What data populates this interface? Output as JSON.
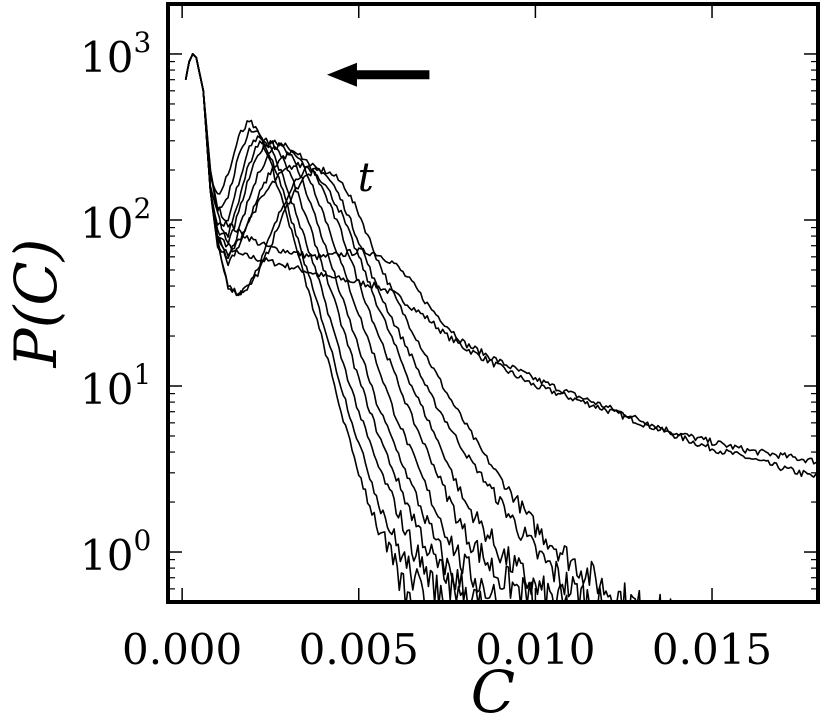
{
  "chart_data": {
    "type": "line",
    "title": "",
    "xlabel": "C",
    "ylabel": "P(C)",
    "xlim": [
      -0.0004,
      0.018
    ],
    "ylim": [
      0.5,
      2000
    ],
    "yscale": "log",
    "grid": false,
    "legend": "none",
    "x_ticks": [
      {
        "value": 0.0,
        "label": "0.000"
      },
      {
        "value": 0.005,
        "label": "0.005"
      },
      {
        "value": 0.01,
        "label": "0.010"
      },
      {
        "value": 0.015,
        "label": "0.015"
      }
    ],
    "y_ticks": [
      {
        "value": 1,
        "base": "10",
        "exp": "0"
      },
      {
        "value": 10,
        "base": "10",
        "exp": "1"
      },
      {
        "value": 100,
        "base": "10",
        "exp": "2"
      },
      {
        "value": 1000,
        "base": "10",
        "exp": "3"
      }
    ],
    "annotations": [
      {
        "text": "t",
        "x": 0.0052,
        "y": 150
      },
      {
        "type": "arrow",
        "from": [
          0.007,
          750
        ],
        "to": [
          0.0041,
          750
        ]
      }
    ],
    "series": [
      {
        "x": [
          0.0001,
          0.0002,
          0.0003,
          0.0004,
          0.0006,
          0.0008,
          0.001,
          0.0013,
          0.0016,
          0.0019,
          0.0022,
          0.0025,
          0.0028,
          0.0031,
          0.0034,
          0.0037,
          0.004,
          0.0045,
          0.005,
          0.0055,
          0.006,
          0.0065,
          0.007,
          0.0075,
          0.008,
          0.009,
          0.01,
          0.011,
          0.012,
          0.013,
          0.014,
          0.015,
          0.016,
          0.017,
          0.018
        ],
        "y": [
          700,
          900,
          1000,
          950,
          600,
          200,
          110,
          70,
          62,
          60,
          58,
          56,
          54,
          52,
          50,
          48,
          46,
          44,
          42,
          40,
          36,
          30,
          25,
          20,
          17,
          13,
          10,
          8.5,
          7.2,
          6,
          5,
          4.2,
          3.7,
          3.2,
          2.8
        ]
      },
      {
        "x": [
          0.0001,
          0.0002,
          0.0003,
          0.0004,
          0.0006,
          0.0008,
          0.001,
          0.0013,
          0.0016,
          0.0019,
          0.0022,
          0.0025,
          0.0028,
          0.0031,
          0.0034,
          0.0037,
          0.004,
          0.0045,
          0.005,
          0.0055,
          0.006,
          0.0065,
          0.007,
          0.0075,
          0.008,
          0.009,
          0.01,
          0.011,
          0.012,
          0.013,
          0.014,
          0.015,
          0.016,
          0.017,
          0.018
        ],
        "y": [
          700,
          900,
          1000,
          950,
          600,
          200,
          120,
          95,
          85,
          78,
          72,
          68,
          66,
          64,
          62,
          60,
          60,
          62,
          65,
          63,
          55,
          42,
          30,
          23,
          18,
          14,
          11,
          9,
          7.5,
          6.2,
          5.2,
          4.6,
          4.1,
          3.8,
          3.5
        ]
      },
      {
        "x": [
          0.0001,
          0.0002,
          0.0003,
          0.0004,
          0.0006,
          0.0008,
          0.001,
          0.0013,
          0.0016,
          0.0019,
          0.0022,
          0.0025,
          0.0028,
          0.0031,
          0.0034,
          0.0037,
          0.004,
          0.0043,
          0.0046,
          0.005,
          0.0055,
          0.006,
          0.0065,
          0.007,
          0.0075,
          0.008,
          0.0085,
          0.009,
          0.0095,
          0.01,
          0.011,
          0.012,
          0.013,
          0.014
        ],
        "y": [
          700,
          900,
          1000,
          950,
          600,
          150,
          70,
          40,
          36,
          40,
          50,
          70,
          100,
          140,
          175,
          195,
          200,
          185,
          160,
          110,
          60,
          35,
          22,
          14,
          9,
          6,
          4,
          2.8,
          2,
          1.4,
          0.9,
          0.6,
          0.45,
          0.4
        ]
      },
      {
        "x": [
          0.0001,
          0.0002,
          0.0003,
          0.0004,
          0.0006,
          0.0008,
          0.001,
          0.0013,
          0.0016,
          0.0019,
          0.0022,
          0.0025,
          0.0028,
          0.0031,
          0.0034,
          0.0037,
          0.004,
          0.0043,
          0.0046,
          0.005,
          0.0055,
          0.006,
          0.0065,
          0.007,
          0.0075,
          0.008,
          0.009,
          0.01,
          0.011,
          0.012
        ],
        "y": [
          700,
          900,
          1000,
          950,
          600,
          150,
          70,
          40,
          36,
          42,
          55,
          80,
          115,
          160,
          195,
          210,
          195,
          160,
          120,
          75,
          40,
          24,
          15,
          9,
          6,
          4,
          2,
          1,
          0.6,
          0.45
        ]
      },
      {
        "x": [
          0.0001,
          0.0002,
          0.0003,
          0.0004,
          0.0006,
          0.0008,
          0.001,
          0.0013,
          0.0016,
          0.0019,
          0.0022,
          0.0025,
          0.0028,
          0.0031,
          0.0034,
          0.0037,
          0.004,
          0.0045,
          0.005,
          0.0055,
          0.006,
          0.0065,
          0.007,
          0.0075,
          0.008,
          0.009,
          0.01,
          0.011
        ],
        "y": [
          700,
          900,
          1000,
          950,
          600,
          150,
          80,
          60,
          75,
          100,
          130,
          160,
          190,
          210,
          215,
          200,
          170,
          110,
          60,
          32,
          18,
          10,
          6,
          3.5,
          2,
          1,
          0.6,
          0.45
        ]
      },
      {
        "x": [
          0.0001,
          0.0002,
          0.0003,
          0.0004,
          0.0006,
          0.0008,
          0.001,
          0.0013,
          0.0016,
          0.0019,
          0.0022,
          0.0025,
          0.0028,
          0.0031,
          0.0034,
          0.0037,
          0.004,
          0.0045,
          0.005,
          0.0055,
          0.006,
          0.0065,
          0.007,
          0.0075,
          0.008,
          0.009,
          0.01
        ],
        "y": [
          700,
          900,
          1000,
          950,
          600,
          150,
          75,
          55,
          70,
          100,
          145,
          195,
          235,
          255,
          240,
          200,
          150,
          85,
          42,
          22,
          12,
          6.5,
          3.8,
          2.2,
          1.3,
          0.7,
          0.5
        ]
      },
      {
        "x": [
          0.0001,
          0.0002,
          0.0003,
          0.0004,
          0.0006,
          0.0008,
          0.001,
          0.0013,
          0.0016,
          0.0019,
          0.0022,
          0.0025,
          0.0028,
          0.0031,
          0.0034,
          0.0037,
          0.004,
          0.0045,
          0.005,
          0.0055,
          0.006,
          0.0065,
          0.007,
          0.0075,
          0.008,
          0.009
        ],
        "y": [
          700,
          900,
          1000,
          950,
          600,
          150,
          75,
          58,
          85,
          135,
          200,
          260,
          290,
          270,
          220,
          160,
          110,
          55,
          27,
          14,
          7,
          4,
          2.2,
          1.3,
          0.8,
          0.5
        ]
      },
      {
        "x": [
          0.0001,
          0.0002,
          0.0003,
          0.0004,
          0.0006,
          0.0008,
          0.001,
          0.0013,
          0.0016,
          0.0019,
          0.0022,
          0.0025,
          0.0028,
          0.0031,
          0.0034,
          0.0037,
          0.004,
          0.0045,
          0.005,
          0.0055,
          0.006,
          0.0065,
          0.007,
          0.0075,
          0.0085
        ],
        "y": [
          700,
          900,
          1000,
          950,
          600,
          150,
          80,
          70,
          110,
          180,
          260,
          300,
          290,
          240,
          175,
          115,
          75,
          35,
          17,
          8,
          4.5,
          2.5,
          1.4,
          0.8,
          0.45
        ]
      },
      {
        "x": [
          0.0001,
          0.0002,
          0.0003,
          0.0004,
          0.0006,
          0.0008,
          0.001,
          0.0013,
          0.0016,
          0.0019,
          0.0022,
          0.0025,
          0.0028,
          0.0031,
          0.0034,
          0.0037,
          0.004,
          0.0045,
          0.005,
          0.0055,
          0.006,
          0.0065,
          0.007,
          0.008
        ],
        "y": [
          700,
          900,
          1000,
          950,
          600,
          150,
          85,
          80,
          130,
          220,
          300,
          300,
          250,
          180,
          120,
          80,
          52,
          24,
          11,
          5.5,
          3,
          1.7,
          1,
          0.45
        ]
      },
      {
        "x": [
          0.0001,
          0.0002,
          0.0003,
          0.0004,
          0.0006,
          0.0008,
          0.001,
          0.0013,
          0.0016,
          0.0019,
          0.0022,
          0.0025,
          0.0028,
          0.0031,
          0.0034,
          0.0037,
          0.004,
          0.0045,
          0.005,
          0.0055,
          0.006,
          0.0065,
          0.0075
        ],
        "y": [
          700,
          900,
          1000,
          950,
          600,
          150,
          90,
          100,
          170,
          280,
          320,
          270,
          195,
          130,
          85,
          55,
          35,
          15,
          7,
          3.5,
          2,
          1.1,
          0.45
        ]
      },
      {
        "x": [
          0.0001,
          0.0002,
          0.0003,
          0.0004,
          0.0006,
          0.0008,
          0.001,
          0.0013,
          0.0016,
          0.0019,
          0.0022,
          0.0025,
          0.0028,
          0.0031,
          0.0034,
          0.0037,
          0.004,
          0.0045,
          0.005,
          0.0055,
          0.006,
          0.007
        ],
        "y": [
          700,
          900,
          1000,
          950,
          600,
          160,
          110,
          140,
          240,
          350,
          330,
          240,
          160,
          100,
          62,
          38,
          24,
          10,
          4.5,
          2.2,
          1.2,
          0.45
        ]
      },
      {
        "x": [
          0.0001,
          0.0002,
          0.0003,
          0.0004,
          0.0006,
          0.0008,
          0.001,
          0.0013,
          0.0016,
          0.0019,
          0.0022,
          0.0025,
          0.0028,
          0.0031,
          0.0034,
          0.0037,
          0.004,
          0.0045,
          0.005,
          0.0055,
          0.0065
        ],
        "y": [
          700,
          900,
          1000,
          950,
          600,
          180,
          140,
          190,
          320,
          400,
          330,
          220,
          140,
          85,
          50,
          30,
          18,
          7,
          3,
          1.5,
          0.45
        ]
      }
    ]
  }
}
